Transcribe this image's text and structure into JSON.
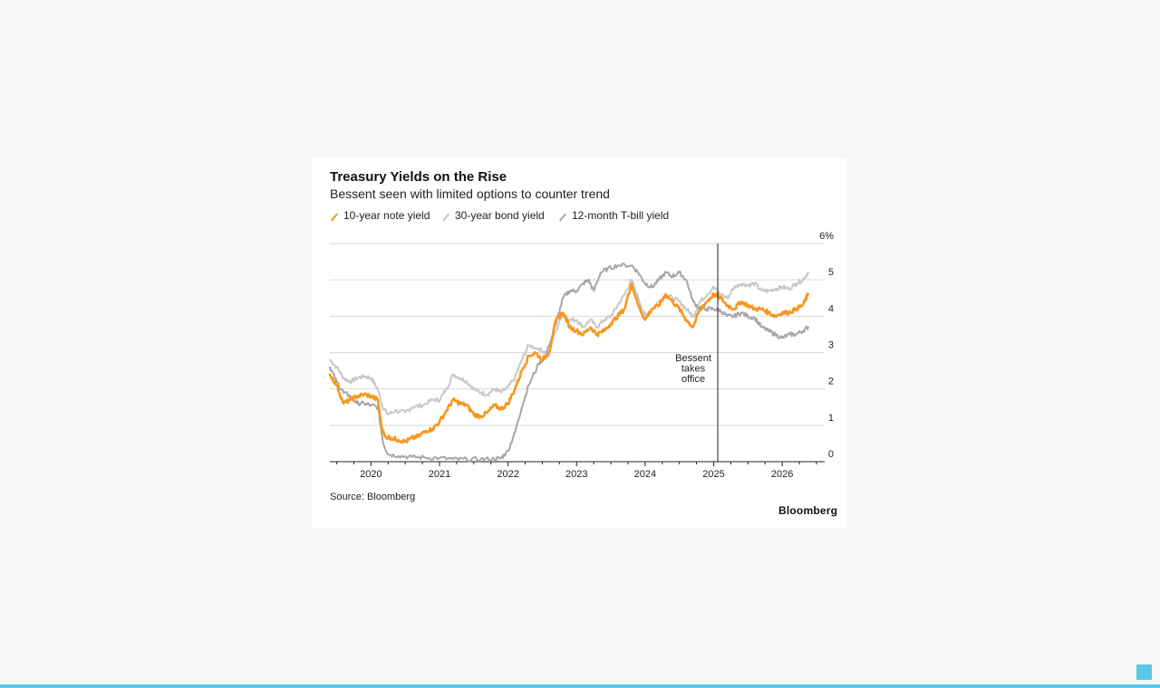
{
  "chart_data": {
    "type": "line",
    "title": "Treasury Yields on the Rise",
    "subtitle": "Bessent seen with limited options to counter trend",
    "source": "Source: Bloomberg",
    "brand": "Bloomberg",
    "ylim": [
      0,
      6
    ],
    "yticks": [
      0,
      1,
      2,
      3,
      4,
      5,
      6
    ],
    "ytick_labels": [
      "0",
      "1",
      "2",
      "3",
      "4",
      "5",
      "6%"
    ],
    "xlim": [
      2019.4,
      2026.62
    ],
    "xticks": [
      2020,
      2021,
      2022,
      2023,
      2024,
      2025,
      2026
    ],
    "xtick_labels": [
      "2020",
      "2021",
      "2022",
      "2023",
      "2024",
      "2025",
      "2026"
    ],
    "grid": true,
    "legend_position": "top-left",
    "annotation": {
      "x": 2025.06,
      "text": [
        "Bessent",
        "takes",
        "office"
      ]
    },
    "series": [
      {
        "name": "30-year bond yield",
        "color": "#c8c8c8",
        "x": [
          2019.4,
          2019.5,
          2019.6,
          2019.7,
          2019.8,
          2019.9,
          2020.0,
          2020.1,
          2020.17,
          2020.25,
          2020.35,
          2020.5,
          2020.6,
          2020.75,
          2020.9,
          2021.0,
          2021.1,
          2021.2,
          2021.3,
          2021.4,
          2021.5,
          2021.6,
          2021.7,
          2021.8,
          2021.9,
          2022.0,
          2022.1,
          2022.2,
          2022.3,
          2022.45,
          2022.55,
          2022.7,
          2022.8,
          2022.9,
          2023.0,
          2023.1,
          2023.2,
          2023.3,
          2023.4,
          2023.5,
          2023.6,
          2023.7,
          2023.8,
          2023.9,
          2024.0,
          2024.1,
          2024.2,
          2024.3,
          2024.4,
          2024.5,
          2024.6,
          2024.7,
          2024.8,
          2024.9,
          2025.0,
          2025.1,
          2025.2,
          2025.3,
          2025.4,
          2025.5,
          2025.6,
          2025.7,
          2025.8,
          2025.9,
          2026.0,
          2026.1,
          2026.2,
          2026.3,
          2026.38
        ],
        "y": [
          2.8,
          2.6,
          2.3,
          2.2,
          2.3,
          2.35,
          2.3,
          2.0,
          1.5,
          1.3,
          1.4,
          1.35,
          1.5,
          1.55,
          1.7,
          1.7,
          2.0,
          2.4,
          2.3,
          2.2,
          2.0,
          1.9,
          1.85,
          2.0,
          1.9,
          2.05,
          2.3,
          2.8,
          3.2,
          3.1,
          3.0,
          3.6,
          4.1,
          3.9,
          3.9,
          3.7,
          3.9,
          3.7,
          3.9,
          4.0,
          4.3,
          4.6,
          5.0,
          4.5,
          4.0,
          4.2,
          4.4,
          4.6,
          4.5,
          4.4,
          4.2,
          4.0,
          4.4,
          4.6,
          4.8,
          4.6,
          4.5,
          4.8,
          4.9,
          4.85,
          4.9,
          4.7,
          4.7,
          4.75,
          4.8,
          4.75,
          4.9,
          5.0,
          5.2
        ]
      },
      {
        "name": "12-month T-bill yield",
        "color": "#a7a7a7",
        "x": [
          2019.4,
          2019.5,
          2019.6,
          2019.7,
          2019.8,
          2019.9,
          2020.0,
          2020.1,
          2020.18,
          2020.25,
          2020.4,
          2020.6,
          2020.8,
          2021.0,
          2021.2,
          2021.4,
          2021.6,
          2021.8,
          2021.9,
          2022.0,
          2022.1,
          2022.2,
          2022.3,
          2022.45,
          2022.55,
          2022.7,
          2022.8,
          2022.9,
          2023.0,
          2023.1,
          2023.17,
          2023.25,
          2023.35,
          2023.45,
          2023.6,
          2023.8,
          2023.9,
          2024.0,
          2024.1,
          2024.2,
          2024.3,
          2024.4,
          2024.5,
          2024.6,
          2024.7,
          2024.8,
          2024.9,
          2025.0,
          2025.1,
          2025.2,
          2025.3,
          2025.4,
          2025.5,
          2025.6,
          2025.7,
          2025.8,
          2025.9,
          2026.0,
          2026.1,
          2026.2,
          2026.3,
          2026.38
        ],
        "y": [
          2.6,
          2.2,
          1.9,
          1.8,
          1.6,
          1.6,
          1.55,
          1.5,
          0.5,
          0.2,
          0.16,
          0.13,
          0.11,
          0.1,
          0.07,
          0.06,
          0.07,
          0.07,
          0.1,
          0.3,
          0.8,
          1.5,
          2.1,
          2.7,
          2.9,
          3.8,
          4.5,
          4.7,
          4.7,
          4.9,
          5.0,
          4.7,
          5.2,
          5.3,
          5.4,
          5.4,
          5.2,
          4.9,
          4.8,
          5.0,
          5.2,
          5.1,
          5.2,
          5.0,
          4.4,
          4.2,
          4.2,
          4.2,
          4.15,
          4.0,
          4.0,
          4.1,
          4.0,
          3.95,
          3.7,
          3.6,
          3.5,
          3.4,
          3.5,
          3.5,
          3.6,
          3.7
        ]
      },
      {
        "name": "10-year note yield",
        "color": "#f7971e",
        "x": [
          2019.4,
          2019.5,
          2019.6,
          2019.7,
          2019.8,
          2019.9,
          2020.0,
          2020.1,
          2020.15,
          2020.2,
          2020.3,
          2020.4,
          2020.5,
          2020.6,
          2020.7,
          2020.8,
          2020.9,
          2021.0,
          2021.1,
          2021.2,
          2021.3,
          2021.4,
          2021.5,
          2021.6,
          2021.7,
          2021.8,
          2021.9,
          2022.0,
          2022.1,
          2022.2,
          2022.3,
          2022.4,
          2022.5,
          2022.6,
          2022.7,
          2022.8,
          2022.9,
          2023.0,
          2023.1,
          2023.2,
          2023.3,
          2023.4,
          2023.5,
          2023.6,
          2023.7,
          2023.8,
          2023.9,
          2024.0,
          2024.1,
          2024.2,
          2024.3,
          2024.4,
          2024.5,
          2024.6,
          2024.7,
          2024.8,
          2024.9,
          2025.0,
          2025.1,
          2025.2,
          2025.3,
          2025.4,
          2025.5,
          2025.6,
          2025.7,
          2025.8,
          2025.9,
          2026.0,
          2026.1,
          2026.2,
          2026.3,
          2026.38
        ],
        "y": [
          2.4,
          2.1,
          1.6,
          1.7,
          1.8,
          1.85,
          1.8,
          1.7,
          1.0,
          0.7,
          0.65,
          0.6,
          0.55,
          0.65,
          0.7,
          0.85,
          0.9,
          1.1,
          1.4,
          1.7,
          1.6,
          1.55,
          1.3,
          1.25,
          1.35,
          1.55,
          1.45,
          1.6,
          2.0,
          2.5,
          2.9,
          3.0,
          2.8,
          3.0,
          3.9,
          4.1,
          3.7,
          3.6,
          3.5,
          3.7,
          3.5,
          3.6,
          3.8,
          4.0,
          4.2,
          4.9,
          4.3,
          3.9,
          4.2,
          4.3,
          4.6,
          4.4,
          4.2,
          3.9,
          3.7,
          4.2,
          4.4,
          4.6,
          4.5,
          4.3,
          4.2,
          4.4,
          4.3,
          4.2,
          4.2,
          4.1,
          4.0,
          4.1,
          4.1,
          4.2,
          4.3,
          4.6
        ]
      }
    ]
  },
  "legend": [
    {
      "label": "10-year note yield",
      "color": "#f7971e"
    },
    {
      "label": "30-year bond yield",
      "color": "#c8c8c8"
    },
    {
      "label": "12-month T-bill yield",
      "color": "#a7a7a7"
    }
  ]
}
